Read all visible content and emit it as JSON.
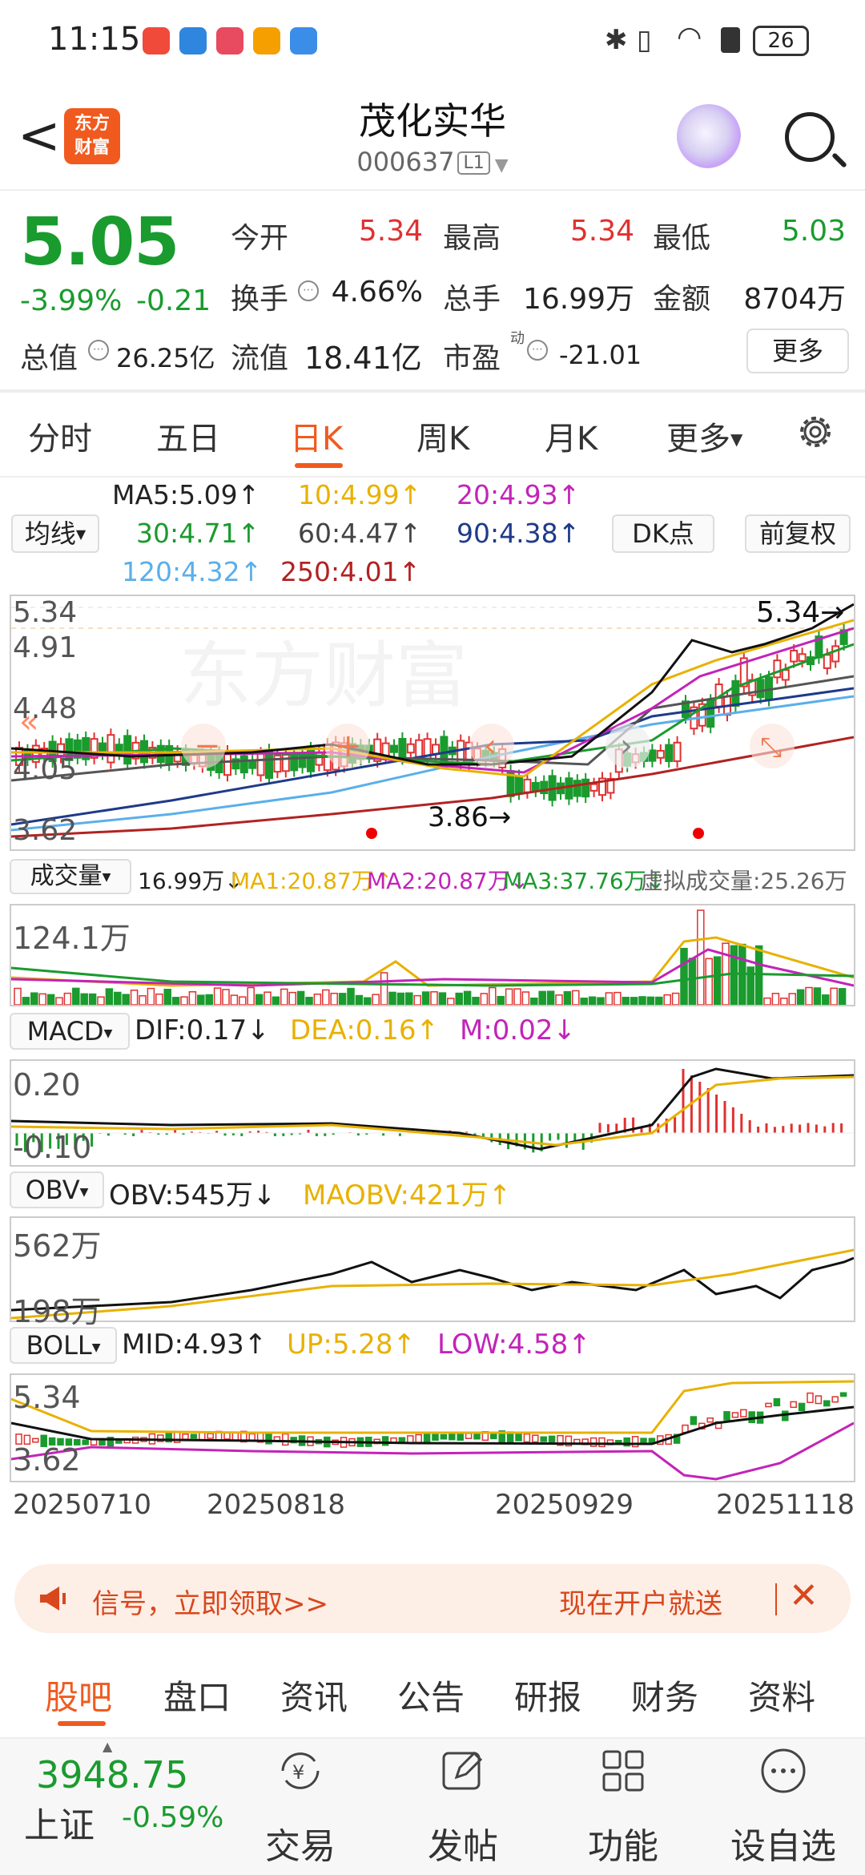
{
  "status_bar": {
    "time": "11:15",
    "battery": "26"
  },
  "header": {
    "back": "<",
    "logo_line1": "东方",
    "logo_line2": "财富",
    "title": "茂化实华",
    "code": "000637",
    "level": "L1"
  },
  "quote": {
    "price": "5.05",
    "change_pct": "-3.99%",
    "change_amt": "-0.21",
    "open_label": "今开",
    "open": "5.34",
    "high_label": "最高",
    "high": "5.34",
    "low_label": "最低",
    "low": "5.03",
    "turnover_label": "换手",
    "turnover": "4.66%",
    "volume_label": "总手",
    "volume": "16.99万",
    "amount_label": "金额",
    "amount": "8704万",
    "mktcap_label": "总值",
    "mktcap": "26.25亿",
    "float_label": "流值",
    "float": "18.41亿",
    "pe_label": "市盈",
    "pe_sup": "动",
    "pe": "-21.01",
    "more": "更多"
  },
  "tabs": [
    "分时",
    "五日",
    "日K",
    "周K",
    "月K",
    "更多"
  ],
  "ma": {
    "selector": "均线",
    "ma5": "MA5:5.09",
    "ma10": "10:4.99",
    "ma20": "20:4.93",
    "ma30": "30:4.71",
    "ma60": "60:4.47",
    "ma90": "90:4.38",
    "ma120": "120:4.32",
    "ma250": "250:4.01",
    "dk": "DK点",
    "adjust": "前复权"
  },
  "kline": {
    "y_high": "5.34",
    "y_mid1": "4.91",
    "y_mid2": "4.48",
    "y_mid3": "4.05",
    "y_low": "3.62",
    "max_label": "5.34",
    "min_label": "3.86"
  },
  "volume": {
    "selector": "成交量",
    "value": "16.99万",
    "ma1": "MA1:20.87万",
    "ma2": "MA2:20.87万",
    "ma3": "MA3:37.76万",
    "virtual": "虚拟成交量:25.26万",
    "axis": "124.1万"
  },
  "macd": {
    "selector": "MACD",
    "dif": "DIF:0.17",
    "dea": "DEA:0.16",
    "m": "M:0.02",
    "axis_top": "0.20",
    "axis_bot": "-0.10"
  },
  "obv": {
    "selector": "OBV",
    "obv": "OBV:545万",
    "maobv": "MAOBV:421万",
    "axis_top": "562万",
    "axis_bot": "198万"
  },
  "boll": {
    "selector": "BOLL",
    "mid": "MID:4.93",
    "up": "UP:5.28",
    "low": "LOW:4.58",
    "axis_top": "5.34",
    "axis_bot": "3.62"
  },
  "dates": [
    "20250710",
    "20250818",
    "20250929",
    "20251118"
  ],
  "banner": {
    "left": "信号，立即领取>>",
    "right": "现在开户就送"
  },
  "bottom_tabs": [
    "股吧",
    "盘口",
    "资讯",
    "公告",
    "研报",
    "财务",
    "资料"
  ],
  "footer": {
    "index_value": "3948.75",
    "index_name": "上证",
    "index_pct": "-0.59%",
    "buttons": [
      "交易",
      "发帖",
      "功能",
      "设自选"
    ]
  },
  "colors": {
    "up": "#e03131",
    "down": "#1a9b2e",
    "accent": "#f05a1f"
  }
}
